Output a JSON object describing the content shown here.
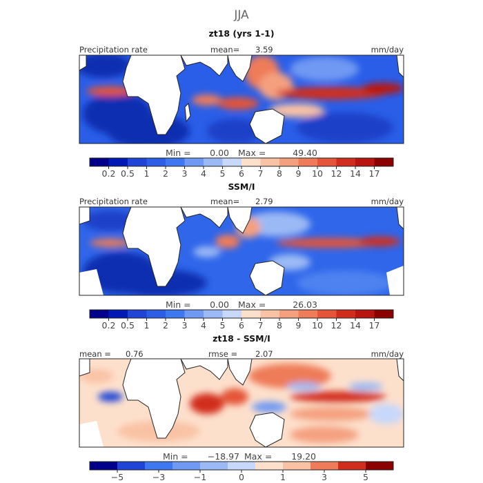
{
  "season": "JJA",
  "colors": {
    "ocean_blue_dark": "#0a2fb0",
    "ocean_blue": "#2a5ee8",
    "land": "#ffffff",
    "coast": "#222222"
  },
  "chart_data": [
    {
      "type": "heatmap",
      "title": "zt18 (yrs 1-1)",
      "left_label": "Precipitation rate",
      "mean_label": "mean=",
      "mean_value": "3.59",
      "units": "mm/day",
      "stats": {
        "min_label": "Min =",
        "min": "0.00",
        "max_label": "Max =",
        "max": "49.40"
      },
      "colorbar": {
        "ticks": [
          "0.2",
          "0.5",
          "1",
          "2",
          "3",
          "4",
          "5",
          "6",
          "7",
          "8",
          "9",
          "10",
          "12",
          "14",
          "17"
        ],
        "colors": [
          "#00008b",
          "#0019b4",
          "#1f44d6",
          "#2c5fe6",
          "#3d78f0",
          "#6f99f3",
          "#9bb9f5",
          "#c7d8fb",
          "#fde0cc",
          "#f9c2a4",
          "#f4a07f",
          "#ee7b59",
          "#e45539",
          "#d12d1f",
          "#b81410",
          "#8b0000"
        ]
      }
    },
    {
      "type": "heatmap",
      "title": "SSM/I",
      "left_label": "Precipitation rate",
      "mean_label": "mean=",
      "mean_value": "2.79",
      "units": "mm/day",
      "stats": {
        "min_label": "Min =",
        "min": "0.00",
        "max_label": "Max =",
        "max": "26.03"
      },
      "colorbar": {
        "ticks": [
          "0.2",
          "0.5",
          "1",
          "2",
          "3",
          "4",
          "5",
          "6",
          "7",
          "8",
          "9",
          "10",
          "12",
          "14",
          "17"
        ],
        "colors": [
          "#00008b",
          "#0019b4",
          "#1f44d6",
          "#2c5fe6",
          "#3d78f0",
          "#6f99f3",
          "#9bb9f5",
          "#c7d8fb",
          "#fde0cc",
          "#f9c2a4",
          "#f4a07f",
          "#ee7b59",
          "#e45539",
          "#d12d1f",
          "#b81410",
          "#8b0000"
        ]
      }
    },
    {
      "type": "heatmap",
      "title": "zt18 - SSM/I",
      "mean_label": "mean =",
      "mean_value": "0.76",
      "rmse_label": "rmse =",
      "rmse_value": "2.07",
      "units": "mm/day",
      "stats": {
        "min_label": "Min =",
        "min": "−18.97",
        "max_label": "Max =",
        "max": "19.20"
      },
      "colorbar": {
        "ticks": [
          "−5",
          "−3",
          "−1",
          "0",
          "1",
          "3",
          "5"
        ],
        "colors": [
          "#00008b",
          "#1f44d6",
          "#3d78f0",
          "#6f99f3",
          "#9bb9f5",
          "#c7d8fb",
          "#fde0cc",
          "#f9c2a4",
          "#ee7b59",
          "#d12d1f",
          "#8b0000"
        ]
      }
    }
  ]
}
